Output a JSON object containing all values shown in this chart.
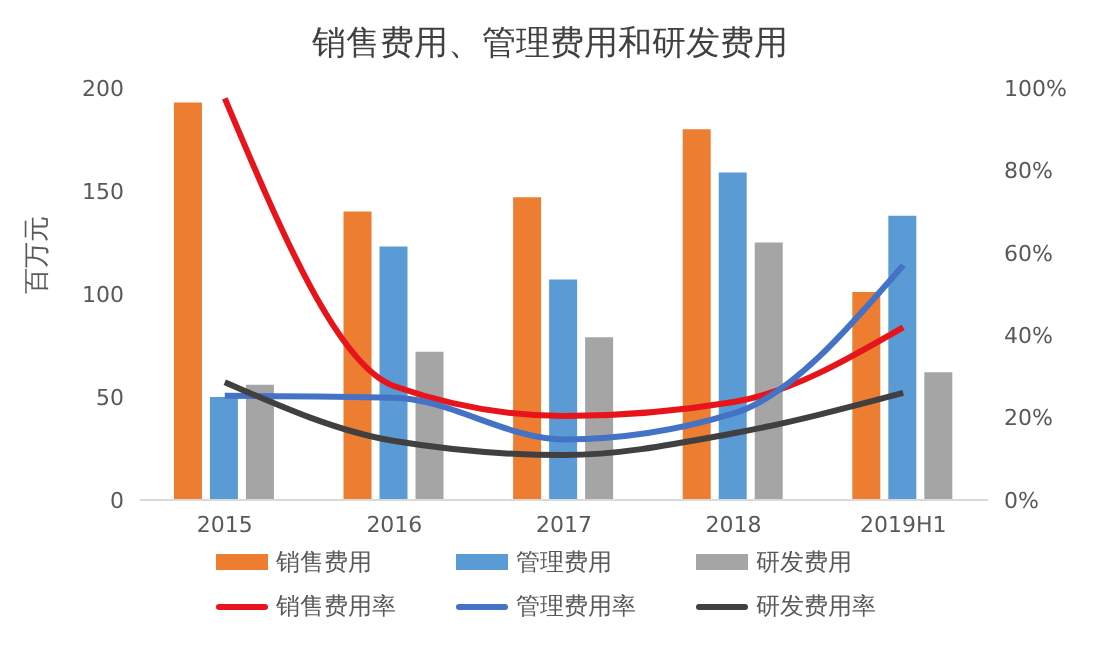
{
  "chart_data": {
    "type": "bar",
    "title": "销售费用、管理费用和研发费用",
    "ylabel": "百万元",
    "categories": [
      "2015",
      "2016",
      "2017",
      "2018",
      "2019H1"
    ],
    "series": [
      {
        "name": "销售费用",
        "color": "#ed7d31",
        "values": [
          193,
          140,
          147,
          180,
          101
        ]
      },
      {
        "name": "管理费用",
        "color": "#5b9bd5",
        "values": [
          50,
          123,
          107,
          159,
          138
        ]
      },
      {
        "name": "研发费用",
        "color": "#a5a5a5",
        "values": [
          56,
          72,
          79,
          125,
          62
        ]
      },
      {
        "name": "销售费用率",
        "type": "line",
        "axis": "y2",
        "color": "#e8141b",
        "values": [
          97.5,
          27.6,
          20.4,
          23.8,
          41.9
        ]
      },
      {
        "name": "管理费用率",
        "type": "line",
        "axis": "y2",
        "color": "#4472c4",
        "values": [
          25.3,
          24.8,
          14.7,
          21,
          57
        ]
      },
      {
        "name": "研发费用率",
        "type": "line",
        "axis": "y2",
        "color": "#404040",
        "values": [
          28.6,
          14.3,
          10.9,
          16.2,
          26
        ]
      }
    ],
    "ylim": [
      0,
      200
    ],
    "yticks": [
      0,
      50,
      100,
      150,
      200
    ],
    "y2lim": [
      0,
      100
    ],
    "y2ticks": [
      {
        "value": 0,
        "label": "0%"
      },
      {
        "value": 20,
        "label": "20%"
      },
      {
        "value": 40,
        "label": "40%"
      },
      {
        "value": 60,
        "label": "60%"
      },
      {
        "value": 80,
        "label": "80%"
      },
      {
        "value": 100,
        "label": "100%"
      }
    ],
    "grid": false,
    "legend": "bottom",
    "marker": "none"
  }
}
